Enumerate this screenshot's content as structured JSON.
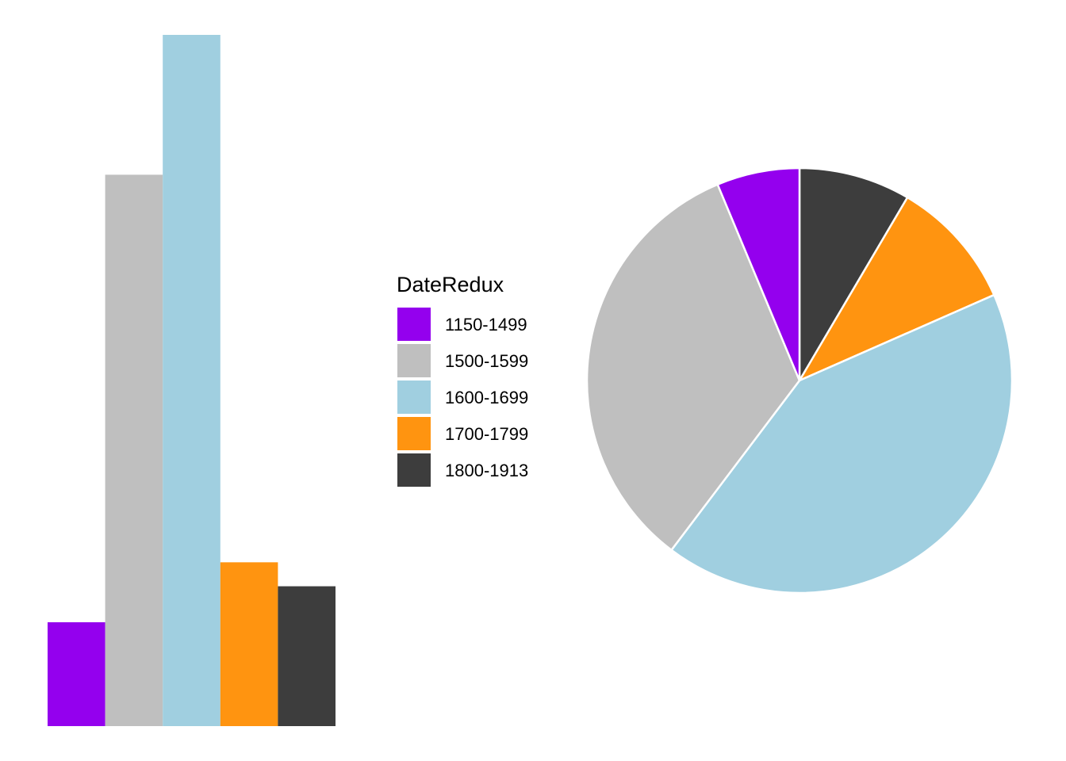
{
  "legend": {
    "title": "DateRedux"
  },
  "chart_data": [
    {
      "type": "bar",
      "categories": [
        "1150-1499",
        "1500-1599",
        "1600-1699",
        "1700-1799",
        "1800-1913"
      ],
      "values": [
        26,
        138,
        173,
        41,
        35
      ],
      "colors": [
        "#9400EE",
        "#BFBFBF",
        "#A0CFE0",
        "#FF9410",
        "#3D3D3D"
      ],
      "ylim": [
        0,
        173
      ],
      "grid": false,
      "axes": "none",
      "legend_position": "right"
    },
    {
      "type": "pie",
      "categories": [
        "1800-1913",
        "1700-1799",
        "1600-1699",
        "1500-1599",
        "1150-1499"
      ],
      "values": [
        35,
        41,
        173,
        138,
        26
      ],
      "colors": [
        "#3D3D3D",
        "#FF9410",
        "#A0CFE0",
        "#BFBFBF",
        "#9400EE"
      ],
      "start_angle": "12 o'clock",
      "direction": "clockwise",
      "slice_border": "#FFFFFF"
    }
  ]
}
